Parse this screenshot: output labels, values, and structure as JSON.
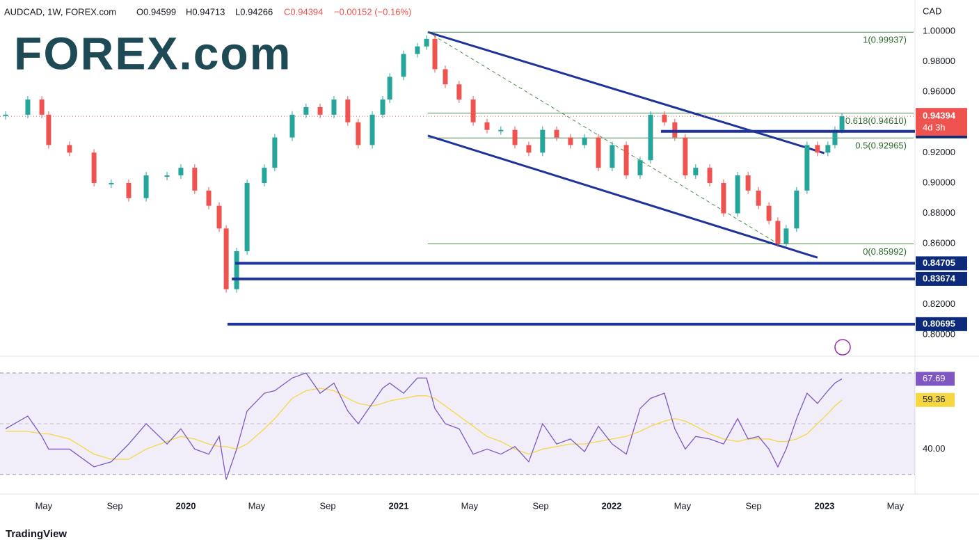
{
  "header": {
    "symbol": "AUDCAD, 1W, FOREX.com",
    "open": "O0.94599",
    "high": "H0.94713",
    "low": "L0.94266",
    "close": "C0.94394",
    "change": "−0.00152 (−0.16%)"
  },
  "logo": "FOREX.com",
  "footer": "TradingView",
  "chart_data": [
    {
      "type": "candlestick",
      "axis_label": "CAD",
      "up_color": "#26a69a",
      "down_color": "#ef5350",
      "x": [
        2019.154,
        2019.258,
        2019.324,
        2019.356,
        2019.454,
        2019.569,
        2019.65,
        2019.732,
        2019.814,
        2019.912,
        2019.977,
        2020.042,
        2020.108,
        2020.157,
        2020.19,
        2020.239,
        2020.288,
        2020.369,
        2020.418,
        2020.5,
        2020.565,
        2020.631,
        2020.696,
        2020.761,
        2020.81,
        2020.876,
        2020.925,
        2020.958,
        2021.023,
        2021.088,
        2021.131,
        2021.17,
        2021.219,
        2021.284,
        2021.35,
        2021.415,
        2021.48,
        2021.546,
        2021.611,
        2021.676,
        2021.742,
        2021.807,
        2021.873,
        2021.938,
        2022.003,
        2022.069,
        2022.134,
        2022.183,
        2022.248,
        2022.297,
        2022.346,
        2022.395,
        2022.461,
        2022.526,
        2022.592,
        2022.641,
        2022.69,
        2022.739,
        2022.781,
        2022.82,
        2022.869,
        2022.918,
        2022.967,
        2023.016,
        2023.049,
        2023.082
      ],
      "values": [
        0.945,
        0.955,
        0.945,
        0.925,
        0.92,
        0.9,
        0.9,
        0.89,
        0.905,
        0.905,
        0.91,
        0.895,
        0.885,
        0.87,
        0.83,
        0.855,
        0.9,
        0.91,
        0.93,
        0.945,
        0.95,
        0.945,
        0.955,
        0.94,
        0.925,
        0.945,
        0.955,
        0.97,
        0.985,
        0.99,
        0.995,
        0.975,
        0.965,
        0.955,
        0.94,
        0.935,
        0.935,
        0.925,
        0.92,
        0.935,
        0.93,
        0.925,
        0.93,
        0.91,
        0.925,
        0.905,
        0.915,
        0.945,
        0.94,
        0.93,
        0.905,
        0.91,
        0.9,
        0.88,
        0.905,
        0.895,
        0.885,
        0.875,
        0.86,
        0.87,
        0.895,
        0.925,
        0.92,
        0.925,
        0.935,
        0.94394
      ],
      "last_label": "4d 3h",
      "xlim": [
        2019.1275,
        2023.425
      ],
      "ylim": [
        0.7867,
        1.0206
      ],
      "xticks": [
        {
          "value": 2019.333,
          "label": "May"
        },
        {
          "value": 2019.667,
          "label": "Sep"
        },
        {
          "value": 2020,
          "label": "2020"
        },
        {
          "value": 2020.333,
          "label": "May"
        },
        {
          "value": 2020.667,
          "label": "Sep"
        },
        {
          "value": 2021,
          "label": "2021"
        },
        {
          "value": 2021.333,
          "label": "May"
        },
        {
          "value": 2021.667,
          "label": "Sep"
        },
        {
          "value": 2022,
          "label": "2022"
        },
        {
          "value": 2022.333,
          "label": "May"
        },
        {
          "value": 2022.667,
          "label": "Sep"
        },
        {
          "value": 2023,
          "label": "2023"
        },
        {
          "value": 2023.333,
          "label": "May"
        }
      ],
      "yticks": [
        {
          "value": 1.0,
          "label": "1.00000"
        },
        {
          "value": 0.98,
          "label": "0.98000"
        },
        {
          "value": 0.96,
          "label": "0.96000"
        },
        {
          "value": 0.92,
          "label": "0.92000"
        },
        {
          "value": 0.9,
          "label": "0.90000"
        },
        {
          "value": 0.88,
          "label": "0.88000"
        },
        {
          "value": 0.86,
          "label": "0.86000"
        },
        {
          "value": 0.82,
          "label": "0.82000"
        },
        {
          "value": 0.8,
          "label": "0.80000"
        }
      ],
      "levels": [
        {
          "value": 0.93401,
          "from": 2022.232
        },
        {
          "value": 0.84705,
          "from": 2020.232
        },
        {
          "value": 0.83674,
          "from": 2020.216
        },
        {
          "value": 0.80695,
          "from": 2020.196
        }
      ],
      "fib": {
        "from": 2021.137,
        "levels": [
          {
            "value": 0.99937,
            "label": "1(0.99937)"
          },
          {
            "value": 0.9461,
            "label": "0.618(0.94610)"
          },
          {
            "value": 0.92965,
            "label": "0.5(0.92965)"
          },
          {
            "value": 0.85992,
            "label": "0(0.85992)"
          }
        ]
      },
      "trendlines": [
        {
          "points": [
            [
              2021.137,
              0.9994
            ],
            [
              2022.999,
              0.9197
            ]
          ],
          "dashed": false
        },
        {
          "points": [
            [
              2021.137,
              0.9312
            ],
            [
              2022.967,
              0.8508
            ]
          ],
          "dashed": false
        },
        {
          "points": [
            [
              2021.137,
              0.9994
            ],
            [
              2022.781,
              0.86
            ]
          ],
          "dashed": true
        }
      ]
    },
    {
      "type": "line",
      "ylim": [
        22.3,
        75.2
      ],
      "yticks": [
        {
          "value": 40,
          "label": "40.00"
        }
      ],
      "bands": [
        70,
        50,
        30
      ],
      "x": [
        2019.154,
        2019.258,
        2019.324,
        2019.356,
        2019.454,
        2019.569,
        2019.65,
        2019.732,
        2019.814,
        2019.912,
        2019.977,
        2020.042,
        2020.108,
        2020.157,
        2020.19,
        2020.239,
        2020.288,
        2020.369,
        2020.418,
        2020.5,
        2020.565,
        2020.631,
        2020.696,
        2020.761,
        2020.81,
        2020.876,
        2020.925,
        2020.958,
        2021.023,
        2021.088,
        2021.131,
        2021.17,
        2021.219,
        2021.284,
        2021.35,
        2021.415,
        2021.48,
        2021.546,
        2021.611,
        2021.676,
        2021.742,
        2021.807,
        2021.873,
        2021.938,
        2022.003,
        2022.069,
        2022.134,
        2022.183,
        2022.248,
        2022.297,
        2022.346,
        2022.395,
        2022.461,
        2022.526,
        2022.592,
        2022.641,
        2022.69,
        2022.739,
        2022.781,
        2022.82,
        2022.869,
        2022.918,
        2022.967,
        2023.016,
        2023.049,
        2023.082
      ],
      "series": [
        {
          "color": "#7e57c2",
          "values": [
            48,
            53,
            45,
            40,
            40,
            33,
            35,
            42,
            50,
            42,
            48,
            40,
            38,
            45,
            28,
            40,
            55,
            62,
            63,
            68,
            70,
            62,
            66,
            55,
            50,
            58,
            64,
            66,
            62,
            68,
            68,
            56,
            50,
            48,
            38,
            40,
            38,
            41,
            35,
            50,
            42,
            44,
            39,
            49,
            42,
            38,
            56,
            60,
            62,
            48,
            40,
            45,
            44,
            42,
            52,
            44,
            45,
            40,
            33,
            40,
            52,
            62,
            58,
            63,
            66,
            67.69
          ]
        },
        {
          "color": "#f5d742",
          "values": [
            47,
            47,
            46,
            46,
            44,
            38,
            36,
            36,
            40,
            43,
            45,
            44,
            42,
            41,
            41,
            40,
            42,
            48,
            52,
            60,
            63,
            64,
            63,
            60,
            58,
            57,
            58,
            59,
            60,
            61,
            61,
            60,
            57,
            53,
            49,
            45,
            43,
            40,
            38,
            40,
            41,
            42,
            42,
            43,
            44,
            45,
            47,
            49,
            51,
            52,
            51,
            49,
            46,
            44,
            43,
            44,
            44,
            44,
            43,
            43,
            44,
            46,
            50,
            54,
            57,
            59.36
          ]
        }
      ]
    }
  ]
}
